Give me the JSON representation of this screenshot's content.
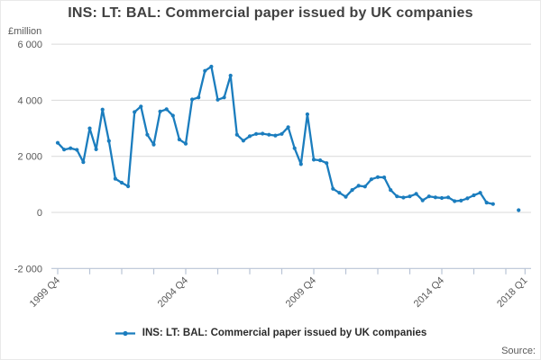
{
  "title": "INS: LT: BAL: Commercial paper issued by UK companies",
  "y_axis": {
    "unit": "£million",
    "ticks": [
      "6 000",
      "4 000",
      "2 000",
      "0",
      "-2 000"
    ],
    "tick_values": [
      6000,
      4000,
      2000,
      0,
      -2000
    ]
  },
  "x_axis": {
    "tick_quarters": [
      0,
      5,
      10,
      15,
      20,
      25,
      30,
      35,
      40,
      45,
      50,
      55,
      60,
      65,
      70,
      73
    ],
    "labeled_ticks": [
      {
        "label": "1999 Q4",
        "q": 0
      },
      {
        "label": "2004 Q4",
        "q": 20
      },
      {
        "label": "2009 Q4",
        "q": 40
      },
      {
        "label": "2014 Q4",
        "q": 60
      },
      {
        "label": "2018 Q1",
        "q": 73
      }
    ]
  },
  "legend": {
    "label": "INS: LT: BAL: Commercial paper issued by UK companies"
  },
  "source_label": "Source:",
  "colors": {
    "series": "#1b7dbe",
    "grid": "#d9d9d9",
    "axis": "#b9c4d6",
    "title_text": "#404040",
    "tick_text": "#595959"
  },
  "chart_data": {
    "type": "line",
    "title": "INS: LT: BAL: Commercial paper issued by UK companies",
    "ylabel": "£million",
    "ylim": [
      -2000,
      6000
    ],
    "grid": "horizontal",
    "legend_position": "bottom",
    "marker": "circle",
    "x": [
      "1999 Q4",
      "2000 Q1",
      "2000 Q2",
      "2000 Q3",
      "2000 Q4",
      "2001 Q1",
      "2001 Q2",
      "2001 Q3",
      "2001 Q4",
      "2002 Q1",
      "2002 Q2",
      "2002 Q3",
      "2002 Q4",
      "2003 Q1",
      "2003 Q2",
      "2003 Q3",
      "2003 Q4",
      "2004 Q1",
      "2004 Q2",
      "2004 Q3",
      "2004 Q4",
      "2005 Q1",
      "2005 Q2",
      "2005 Q3",
      "2005 Q4",
      "2006 Q1",
      "2006 Q2",
      "2006 Q3",
      "2006 Q4",
      "2007 Q1",
      "2007 Q2",
      "2007 Q3",
      "2007 Q4",
      "2008 Q1",
      "2008 Q2",
      "2008 Q3",
      "2008 Q4",
      "2009 Q1",
      "2009 Q2",
      "2009 Q3",
      "2009 Q4",
      "2010 Q1",
      "2010 Q2",
      "2010 Q3",
      "2010 Q4",
      "2011 Q1",
      "2011 Q2",
      "2011 Q3",
      "2011 Q4",
      "2012 Q1",
      "2012 Q2",
      "2012 Q3",
      "2012 Q4",
      "2013 Q1",
      "2013 Q2",
      "2013 Q3",
      "2013 Q4",
      "2014 Q1",
      "2014 Q2",
      "2014 Q3",
      "2014 Q4",
      "2015 Q1",
      "2015 Q2",
      "2015 Q3",
      "2015 Q4",
      "2016 Q1",
      "2016 Q2",
      "2016 Q3",
      "2016 Q4",
      "2017 Q1",
      "2017 Q2",
      "2017 Q3",
      "2017 Q4",
      "2018 Q1"
    ],
    "values": [
      2480,
      2240,
      2290,
      2230,
      1790,
      3000,
      2250,
      3670,
      2550,
      1200,
      1060,
      930,
      3580,
      3780,
      2770,
      2420,
      3600,
      3680,
      3450,
      2600,
      2450,
      4030,
      4100,
      5050,
      5200,
      4020,
      4100,
      4880,
      2770,
      2560,
      2720,
      2800,
      2810,
      2770,
      2740,
      2800,
      3040,
      2290,
      1720,
      3500,
      1880,
      1860,
      1760,
      840,
      700,
      560,
      800,
      950,
      920,
      1180,
      1260,
      1250,
      800,
      570,
      530,
      570,
      660,
      430,
      570,
      535,
      515,
      535,
      400,
      420,
      500,
      610,
      700,
      350,
      300,
      null,
      null,
      null,
      80,
      null
    ]
  }
}
